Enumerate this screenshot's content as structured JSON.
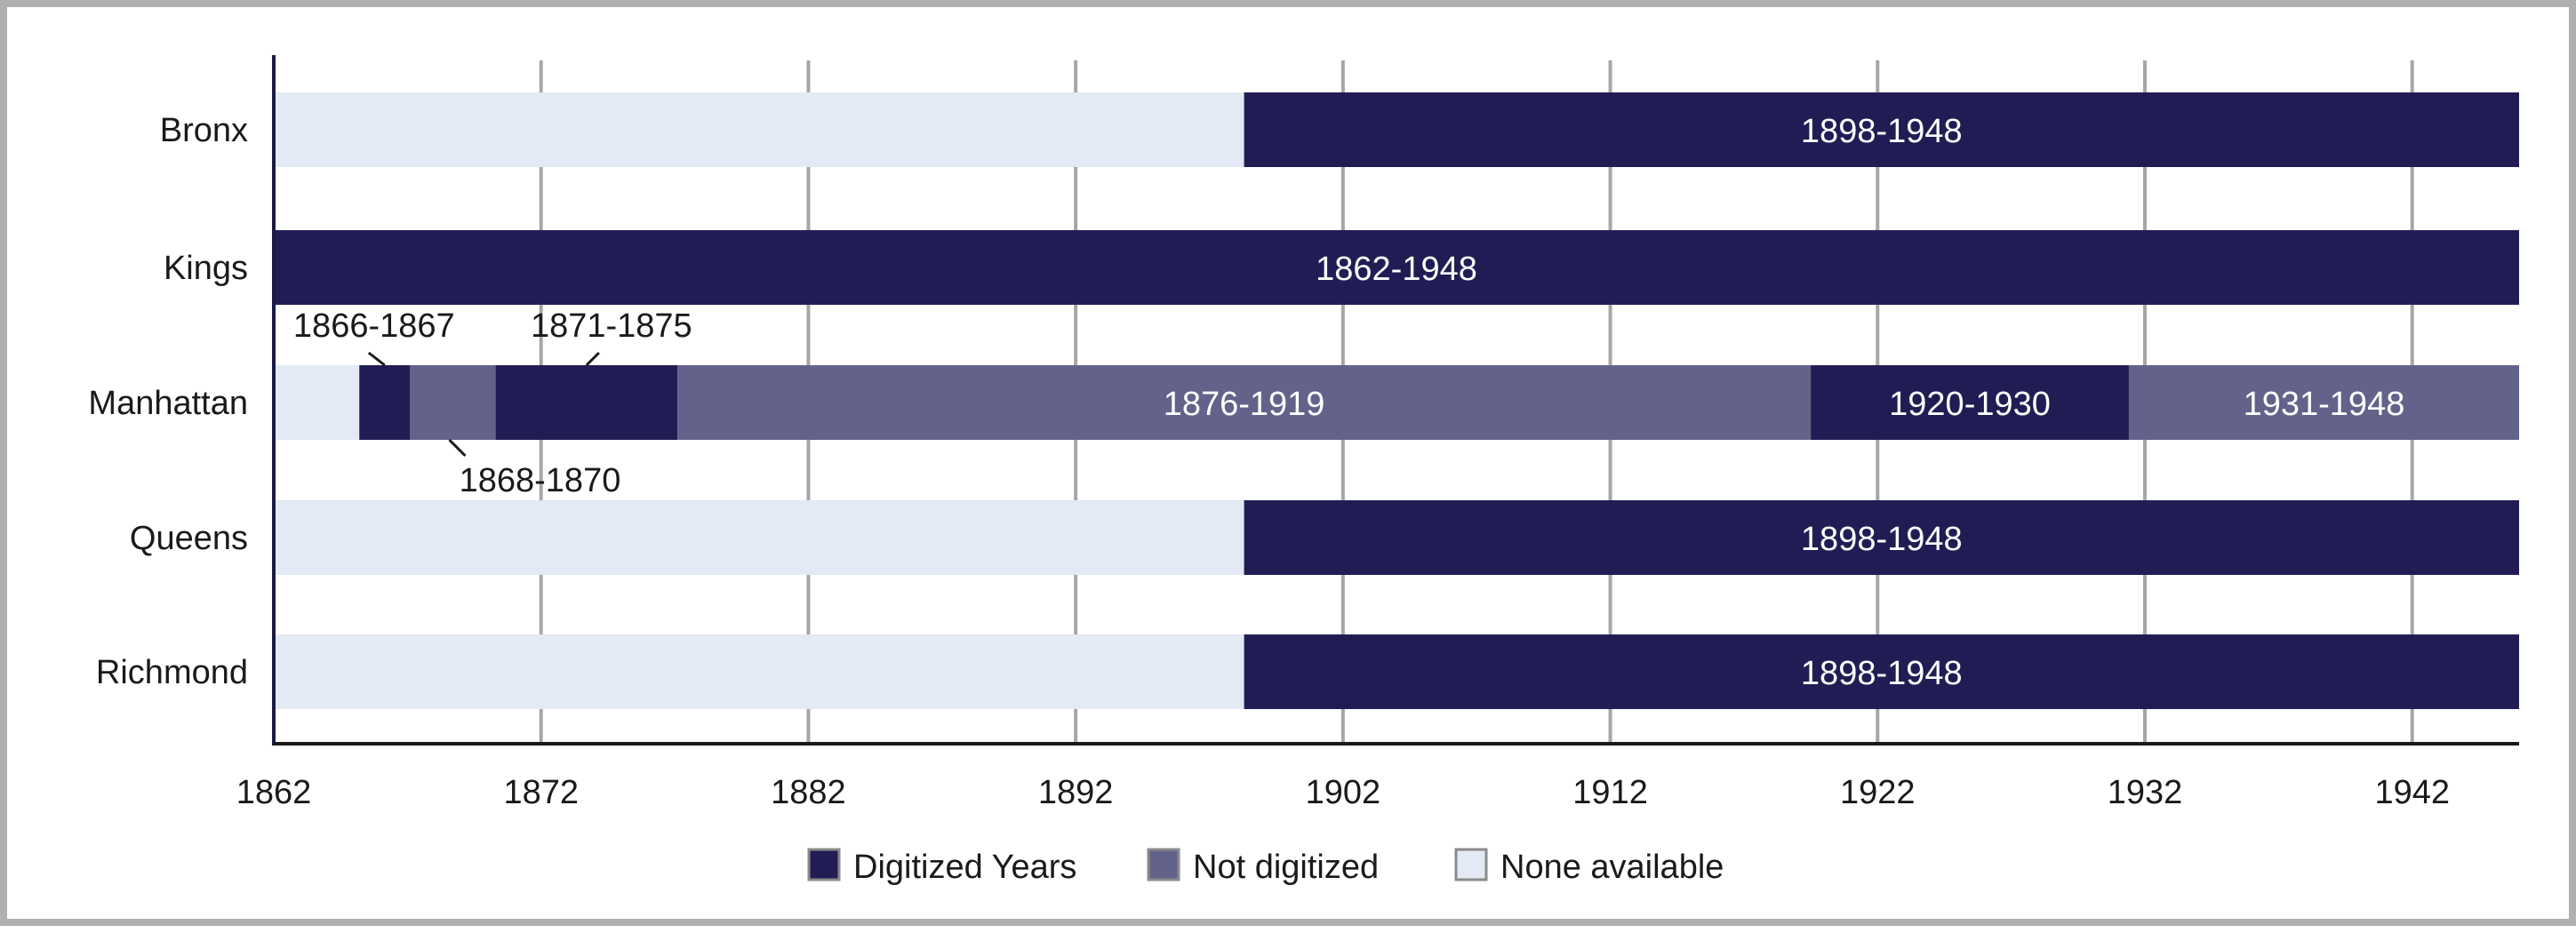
{
  "chart_data": {
    "type": "bar",
    "orientation": "horizontal",
    "stacked": true,
    "categories": [
      "Bronx",
      "Kings",
      "Manhattan",
      "Queens",
      "Richmond"
    ],
    "xlim": [
      1862,
      1946
    ],
    "xticks": [
      1862,
      1872,
      1882,
      1892,
      1902,
      1912,
      1922,
      1932,
      1942
    ],
    "grid": true,
    "legend_position": "bottom",
    "legend": [
      {
        "key": "digitized",
        "label": "Digitized Years"
      },
      {
        "key": "not_digitized",
        "label": "Not digitized"
      },
      {
        "key": "none",
        "label": "None available"
      }
    ],
    "colors": {
      "digitized": "#211d54",
      "not_digitized": "#63628a",
      "none": "#e3e9f5",
      "grid": "#a6a6a6",
      "axis": "#1a1a4a"
    },
    "segments": {
      "Bronx": [
        {
          "start": 1862,
          "end": 1898.3,
          "status": "none"
        },
        {
          "start": 1898.3,
          "end": 1946,
          "status": "digitized",
          "label": "1898-1948"
        }
      ],
      "Kings": [
        {
          "start": 1862,
          "end": 1946,
          "status": "digitized",
          "label": "1862-1948"
        }
      ],
      "Manhattan": [
        {
          "start": 1862,
          "end": 1865.2,
          "status": "none"
        },
        {
          "start": 1865.2,
          "end": 1867.1,
          "status": "digitized",
          "label": "1866-1867",
          "label_position": "above"
        },
        {
          "start": 1867.1,
          "end": 1870.3,
          "status": "not_digitized",
          "label": "1868-1870",
          "label_position": "below"
        },
        {
          "start": 1870.3,
          "end": 1877.1,
          "status": "digitized",
          "label": "1871-1875",
          "label_position": "above"
        },
        {
          "start": 1877.1,
          "end": 1919.5,
          "status": "not_digitized",
          "label": "1876-1919"
        },
        {
          "start": 1919.5,
          "end": 1931.4,
          "status": "digitized",
          "label": "1920-1930"
        },
        {
          "start": 1931.4,
          "end": 1946,
          "status": "not_digitized",
          "label": "1931-1948"
        }
      ],
      "Queens": [
        {
          "start": 1862,
          "end": 1898.3,
          "status": "none"
        },
        {
          "start": 1898.3,
          "end": 1946,
          "status": "digitized",
          "label": "1898-1948"
        }
      ],
      "Richmond": [
        {
          "start": 1862,
          "end": 1898.3,
          "status": "none"
        },
        {
          "start": 1898.3,
          "end": 1946,
          "status": "digitized",
          "label": "1898-1948"
        }
      ]
    }
  }
}
